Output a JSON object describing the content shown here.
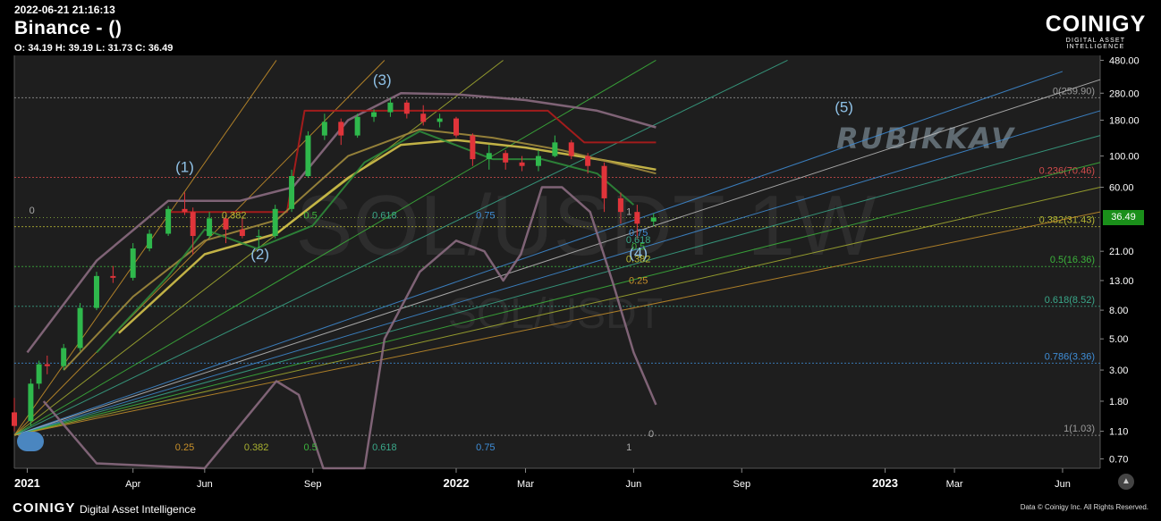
{
  "header": {
    "timestamp": "2022-06-21 21:16:13",
    "exchange": "Binance -  ()",
    "ohlc": "O: 34.19 H: 39.19 L: 31.73 C: 36.49"
  },
  "branding": {
    "logo": "COINIGY",
    "tagline": "DIGITAL ASSET INTELLIGENCE",
    "footer_logo": "COINIGY",
    "footer_tagline": "Digital Asset Intelligence",
    "copyright": "Data © Coinigy Inc.  All Rights Reserved."
  },
  "watermark": {
    "big": "SOL/USDT 1W",
    "small": "SOL/USDT",
    "author": "RUBIKKAV"
  },
  "current_price": "36.49",
  "chart_data": {
    "type": "candlestick",
    "y_scale": "log",
    "ylim": [
      0.6,
      520
    ],
    "xlim": [
      "2020-12-21",
      "2023-07-03"
    ],
    "x_ticks": [
      {
        "date": "2021-01-01",
        "label": "2021",
        "bold": true
      },
      {
        "date": "2021-04-01",
        "label": "Apr"
      },
      {
        "date": "2021-06-01",
        "label": "Jun"
      },
      {
        "date": "2021-09-01",
        "label": "Sep"
      },
      {
        "date": "2022-01-01",
        "label": "2022",
        "bold": true
      },
      {
        "date": "2022-03-01",
        "label": "Mar"
      },
      {
        "date": "2022-06-01",
        "label": "Jun"
      },
      {
        "date": "2022-09-01",
        "label": "Sep"
      },
      {
        "date": "2023-01-01",
        "label": "2023",
        "bold": true
      },
      {
        "date": "2023-03-01",
        "label": "Mar"
      },
      {
        "date": "2023-06-01",
        "label": "Jun"
      }
    ],
    "y_ticks": [
      "480.00",
      "280.00",
      "180.00",
      "100.00",
      "60.00",
      "36.49",
      "21.00",
      "13.00",
      "8.00",
      "5.00",
      "3.00",
      "1.80",
      "1.10",
      "0.70"
    ],
    "fib_retracement": [
      {
        "label": "0(259.90)",
        "value": 259.9,
        "color": "#9a9a9a"
      },
      {
        "label": "0.236(70.46)",
        "value": 70.46,
        "color": "#d24b4b"
      },
      {
        "label": "0.382(31.43)",
        "value": 31.43,
        "color": "#b8b832"
      },
      {
        "label": "0.5(16.36)",
        "value": 16.36,
        "color": "#3cb43c"
      },
      {
        "label": "0.618(8.52)",
        "value": 8.52,
        "color": "#3aa88a"
      },
      {
        "label": "0.786(3.36)",
        "value": 3.36,
        "color": "#3f8ed8"
      },
      {
        "label": "1(1.03)",
        "value": 1.03,
        "color": "#9a9a9a"
      }
    ],
    "fan_labels_bottom": [
      {
        "label": "0.25",
        "date": "2021-05-15",
        "color": "#c8902a"
      },
      {
        "label": "0.382",
        "date": "2021-07-15",
        "color": "#a8b030"
      },
      {
        "label": "0.5",
        "date": "2021-08-30",
        "color": "#3cb43c"
      },
      {
        "label": "0.618",
        "date": "2021-11-01",
        "color": "#3aa88a"
      },
      {
        "label": "0.75",
        "date": "2022-01-26",
        "color": "#3f8ed8"
      },
      {
        "label": "1",
        "date": "2022-05-28",
        "color": "#aaaaaa"
      }
    ],
    "fan_labels_mid": [
      {
        "label": "0.382",
        "date": "2021-06-26",
        "value": 36,
        "color": "#b8b832"
      },
      {
        "label": "0.5",
        "date": "2021-08-30",
        "value": 36,
        "color": "#3cb43c"
      },
      {
        "label": "0.618",
        "date": "2021-11-01",
        "value": 36,
        "color": "#3aa88a"
      },
      {
        "label": "0.75",
        "date": "2022-01-26",
        "value": 36,
        "color": "#3f8ed8"
      },
      {
        "label": "1",
        "date": "2022-05-28",
        "value": 38,
        "color": "#aaaaaa"
      },
      {
        "label": "0.75",
        "date": "2022-06-05",
        "value": 27,
        "color": "#3f8ed8"
      },
      {
        "label": "0.618",
        "date": "2022-06-05",
        "value": 24,
        "color": "#3aa88a"
      },
      {
        "label": "0.5",
        "date": "2022-06-05",
        "value": 21.5,
        "color": "#3cb43c"
      },
      {
        "label": "0.382",
        "date": "2022-06-05",
        "value": 17.5,
        "color": "#b8b832"
      },
      {
        "label": "0.25",
        "date": "2022-06-05",
        "value": 12.3,
        "color": "#c8902a"
      },
      {
        "label": "0",
        "date": "2021-01-05",
        "value": 39,
        "color": "#aaaaaa"
      },
      {
        "label": "0",
        "date": "2022-06-16",
        "value": 1.0,
        "color": "#aaaaaa"
      }
    ],
    "wave_labels": [
      {
        "label": "(1)",
        "date": "2021-05-15",
        "value": 77
      },
      {
        "label": "(2)",
        "date": "2021-07-18",
        "value": 18.5
      },
      {
        "label": "(3)",
        "date": "2021-10-30",
        "value": 320
      },
      {
        "label": "(4)",
        "date": "2022-06-05",
        "value": 18.8
      },
      {
        "label": "(5)",
        "date": "2022-11-27",
        "value": 205
      }
    ],
    "fans": [
      {
        "from": [
          "2020-12-21",
          1.03
        ],
        "to": [
          "2021-11-01",
          480
        ],
        "color": "#c8902a"
      },
      {
        "from": [
          "2020-12-21",
          1.03
        ],
        "to": [
          "2022-02-10",
          480
        ],
        "color": "#a8b030"
      },
      {
        "from": [
          "2020-12-21",
          1.03
        ],
        "to": [
          "2022-06-20",
          480
        ],
        "color": "#3cb43c"
      },
      {
        "from": [
          "2020-12-21",
          1.03
        ],
        "to": [
          "2022-10-10",
          480
        ],
        "color": "#3aa88a"
      },
      {
        "from": [
          "2020-12-21",
          1.03
        ],
        "to": [
          "2023-06-01",
          400
        ],
        "color": "#3f8ed8"
      },
      {
        "from": [
          "2020-12-21",
          1.03
        ],
        "to": [
          "2023-07-03",
          350
        ],
        "color": "#bdbdbd"
      },
      {
        "from": [
          "2020-12-21",
          1.03
        ],
        "to": [
          "2023-07-03",
          210
        ],
        "color": "#3f8ed8"
      },
      {
        "from": [
          "2020-12-21",
          1.03
        ],
        "to": [
          "2023-07-03",
          140
        ],
        "color": "#3aa88a"
      },
      {
        "from": [
          "2020-12-21",
          1.03
        ],
        "to": [
          "2023-07-03",
          90
        ],
        "color": "#3cb43c"
      },
      {
        "from": [
          "2020-12-21",
          1.03
        ],
        "to": [
          "2023-07-03",
          60
        ],
        "color": "#a8b030"
      },
      {
        "from": [
          "2020-12-21",
          1.03
        ],
        "to": [
          "2023-07-03",
          40
        ],
        "color": "#c8902a"
      },
      {
        "from": [
          "2020-12-21",
          1.03
        ],
        "to": [
          "2021-08-01",
          480
        ],
        "color": "#c8902a"
      }
    ],
    "indicators": [
      {
        "name": "upper-band",
        "color": "#8a6a80",
        "width": 2.5,
        "points": [
          [
            "2021-01-01",
            4
          ],
          [
            "2021-03-01",
            18
          ],
          [
            "2021-05-01",
            48
          ],
          [
            "2021-07-01",
            48
          ],
          [
            "2021-08-15",
            60
          ],
          [
            "2021-10-01",
            180
          ],
          [
            "2021-11-15",
            280
          ],
          [
            "2022-01-01",
            275
          ],
          [
            "2022-03-01",
            250
          ],
          [
            "2022-05-01",
            210
          ],
          [
            "2022-06-20",
            160
          ]
        ]
      },
      {
        "name": "resistance",
        "color": "#b01c1c",
        "width": 2,
        "points": [
          [
            "2021-05-01",
            40
          ],
          [
            "2021-08-10",
            40
          ],
          [
            "2021-08-25",
            210
          ],
          [
            "2022-03-20",
            210
          ],
          [
            "2022-04-20",
            125
          ],
          [
            "2022-06-20",
            125
          ]
        ]
      },
      {
        "name": "ma-yellow",
        "color": "#d4c24a",
        "width": 2.5,
        "points": [
          [
            "2021-03-20",
            5.5
          ],
          [
            "2021-06-01",
            20
          ],
          [
            "2021-08-01",
            28
          ],
          [
            "2021-10-01",
            70
          ],
          [
            "2021-11-15",
            120
          ],
          [
            "2022-01-01",
            130
          ],
          [
            "2022-03-01",
            115
          ],
          [
            "2022-05-01",
            95
          ],
          [
            "2022-06-20",
            80
          ]
        ]
      },
      {
        "name": "ma-olive",
        "color": "#a08a3c",
        "width": 2,
        "points": [
          [
            "2021-02-01",
            3
          ],
          [
            "2021-04-01",
            10
          ],
          [
            "2021-06-01",
            25
          ],
          [
            "2021-08-01",
            35
          ],
          [
            "2021-10-01",
            100
          ],
          [
            "2021-12-01",
            155
          ],
          [
            "2022-02-01",
            135
          ],
          [
            "2022-04-01",
            110
          ],
          [
            "2022-06-20",
            75
          ]
        ]
      },
      {
        "name": "ma-green-fast",
        "color": "#2d8a3a",
        "width": 2,
        "points": [
          [
            "2021-03-01",
            4
          ],
          [
            "2021-05-01",
            14
          ],
          [
            "2021-06-01",
            30
          ],
          [
            "2021-07-15",
            22
          ],
          [
            "2021-09-01",
            32
          ],
          [
            "2021-10-15",
            90
          ],
          [
            "2021-12-01",
            150
          ],
          [
            "2022-02-01",
            95
          ],
          [
            "2022-03-15",
            95
          ],
          [
            "2022-05-01",
            75
          ],
          [
            "2022-06-01",
            45
          ]
        ]
      },
      {
        "name": "oscillator",
        "color": "#8a6a80",
        "width": 2.5,
        "points": [
          [
            "2021-01-15",
            1.8
          ],
          [
            "2021-03-01",
            0.65
          ],
          [
            "2021-06-01",
            0.5
          ],
          [
            "2021-08-01",
            2.5
          ],
          [
            "2021-08-20",
            2.0
          ],
          [
            "2021-09-10",
            0.4
          ],
          [
            "2021-10-15",
            0.5
          ],
          [
            "2021-11-01",
            5
          ],
          [
            "2021-12-01",
            15
          ],
          [
            "2022-01-01",
            25
          ],
          [
            "2022-01-25",
            21
          ],
          [
            "2022-02-10",
            13
          ],
          [
            "2022-02-25",
            20
          ],
          [
            "2022-03-15",
            60
          ],
          [
            "2022-04-01",
            60
          ],
          [
            "2022-04-25",
            40
          ],
          [
            "2022-05-15",
            12
          ],
          [
            "2022-06-01",
            4
          ],
          [
            "2022-06-20",
            1.7
          ]
        ]
      }
    ],
    "candles": [
      {
        "d": "2020-12-21",
        "o": 1.5,
        "h": 1.9,
        "l": 1.1,
        "c": 1.2
      },
      {
        "d": "2021-01-04",
        "o": 1.3,
        "h": 2.6,
        "l": 1.2,
        "c": 2.4
      },
      {
        "d": "2021-01-11",
        "o": 2.4,
        "h": 3.5,
        "l": 2.2,
        "c": 3.3
      },
      {
        "d": "2021-01-18",
        "o": 3.3,
        "h": 3.8,
        "l": 2.8,
        "c": 3.2
      },
      {
        "d": "2021-02-01",
        "o": 3.2,
        "h": 4.6,
        "l": 3.0,
        "c": 4.3
      },
      {
        "d": "2021-02-15",
        "o": 4.3,
        "h": 9.0,
        "l": 4.1,
        "c": 8.3
      },
      {
        "d": "2021-03-01",
        "o": 8.3,
        "h": 15,
        "l": 8.0,
        "c": 14.0
      },
      {
        "d": "2021-03-15",
        "o": 14.0,
        "h": 16.5,
        "l": 12.5,
        "c": 13.6
      },
      {
        "d": "2021-04-01",
        "o": 13.6,
        "h": 24,
        "l": 13.0,
        "c": 22.0
      },
      {
        "d": "2021-04-15",
        "o": 22.0,
        "h": 30,
        "l": 21.0,
        "c": 28.0
      },
      {
        "d": "2021-05-01",
        "o": 28.0,
        "h": 44,
        "l": 27.0,
        "c": 42.0
      },
      {
        "d": "2021-05-15",
        "o": 42.0,
        "h": 55,
        "l": 38.0,
        "c": 40.0
      },
      {
        "d": "2021-05-22",
        "o": 40.0,
        "h": 43,
        "l": 20.0,
        "c": 27.0
      },
      {
        "d": "2021-06-05",
        "o": 27.0,
        "h": 40,
        "l": 26.0,
        "c": 36.0
      },
      {
        "d": "2021-06-19",
        "o": 36.0,
        "h": 38,
        "l": 24.0,
        "c": 30.0
      },
      {
        "d": "2021-07-03",
        "o": 30.0,
        "h": 36,
        "l": 26.0,
        "c": 27.0
      },
      {
        "d": "2021-07-17",
        "o": 27.0,
        "h": 30,
        "l": 22.0,
        "c": 27.0
      },
      {
        "d": "2021-07-31",
        "o": 27.0,
        "h": 45,
        "l": 26.0,
        "c": 42.0
      },
      {
        "d": "2021-08-14",
        "o": 42.0,
        "h": 80,
        "l": 40.0,
        "c": 72.0
      },
      {
        "d": "2021-08-28",
        "o": 72.0,
        "h": 150,
        "l": 70.0,
        "c": 140.0
      },
      {
        "d": "2021-09-11",
        "o": 140.0,
        "h": 200,
        "l": 130.0,
        "c": 175.0
      },
      {
        "d": "2021-09-25",
        "o": 175.0,
        "h": 185,
        "l": 120.0,
        "c": 140.0
      },
      {
        "d": "2021-10-09",
        "o": 140.0,
        "h": 200,
        "l": 135.0,
        "c": 190.0
      },
      {
        "d": "2021-10-23",
        "o": 190.0,
        "h": 215,
        "l": 175.0,
        "c": 205.0
      },
      {
        "d": "2021-11-06",
        "o": 205.0,
        "h": 260,
        "l": 190.0,
        "c": 240.0
      },
      {
        "d": "2021-11-20",
        "o": 240.0,
        "h": 250,
        "l": 185.0,
        "c": 200.0
      },
      {
        "d": "2021-12-04",
        "o": 200.0,
        "h": 230,
        "l": 165.0,
        "c": 175.0
      },
      {
        "d": "2021-12-18",
        "o": 175.0,
        "h": 200,
        "l": 160.0,
        "c": 185.0
      },
      {
        "d": "2022-01-01",
        "o": 185.0,
        "h": 190,
        "l": 135.0,
        "c": 140.0
      },
      {
        "d": "2022-01-15",
        "o": 140.0,
        "h": 145,
        "l": 85.0,
        "c": 95.0
      },
      {
        "d": "2022-01-29",
        "o": 95.0,
        "h": 120,
        "l": 80.0,
        "c": 105.0
      },
      {
        "d": "2022-02-12",
        "o": 105.0,
        "h": 110,
        "l": 80.0,
        "c": 90.0
      },
      {
        "d": "2022-02-26",
        "o": 90.0,
        "h": 100,
        "l": 78.0,
        "c": 85.0
      },
      {
        "d": "2022-03-12",
        "o": 85.0,
        "h": 110,
        "l": 78.0,
        "c": 100.0
      },
      {
        "d": "2022-03-26",
        "o": 100.0,
        "h": 140,
        "l": 98.0,
        "c": 125.0
      },
      {
        "d": "2022-04-09",
        "o": 125.0,
        "h": 130,
        "l": 95.0,
        "c": 100.0
      },
      {
        "d": "2022-04-23",
        "o": 100.0,
        "h": 105,
        "l": 75.0,
        "c": 85.0
      },
      {
        "d": "2022-05-07",
        "o": 85.0,
        "h": 90,
        "l": 40.0,
        "c": 50.0
      },
      {
        "d": "2022-05-21",
        "o": 50.0,
        "h": 55,
        "l": 33.0,
        "c": 40.0
      },
      {
        "d": "2022-06-04",
        "o": 40.0,
        "h": 45,
        "l": 26.0,
        "c": 33.0
      },
      {
        "d": "2022-06-18",
        "o": 34.19,
        "h": 39.19,
        "l": 31.73,
        "c": 36.49
      }
    ]
  }
}
